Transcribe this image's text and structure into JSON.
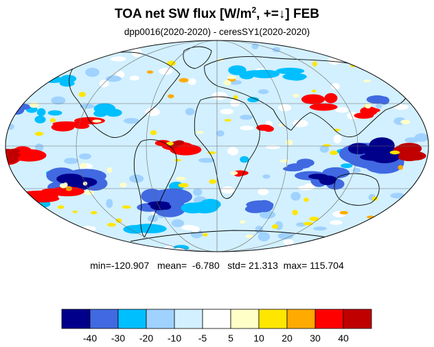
{
  "title": {
    "prefix": "TOA net SW flux [W/m",
    "superscript": "2",
    "suffix": ", +=↓]  FEB"
  },
  "subtitle": "dpp0016(2020-2020) - ceresSY1(2020-2020)",
  "stats": {
    "min_label": "min=",
    "min": "-120.907",
    "mean_label": "mean=",
    "mean": "-6.780",
    "std_label": "std=",
    "std": "21.313",
    "max_label": "max=",
    "max": "115.704"
  },
  "map": {
    "projection": "mollweide",
    "graticule_lon_step_deg": 60,
    "graticule_lat_step_deg": 30
  },
  "colorbar": {
    "colors": [
      "#00008b",
      "#4169e1",
      "#00bfff",
      "#a0d2ff",
      "#d2f0ff",
      "#ffffff",
      "#ffffc8",
      "#ffe600",
      "#ffaa00",
      "#ff0000",
      "#c00000"
    ],
    "tick_labels": [
      "-40",
      "-30",
      "-20",
      "-10",
      "-5",
      "5",
      "10",
      "20",
      "30",
      "40"
    ]
  }
}
